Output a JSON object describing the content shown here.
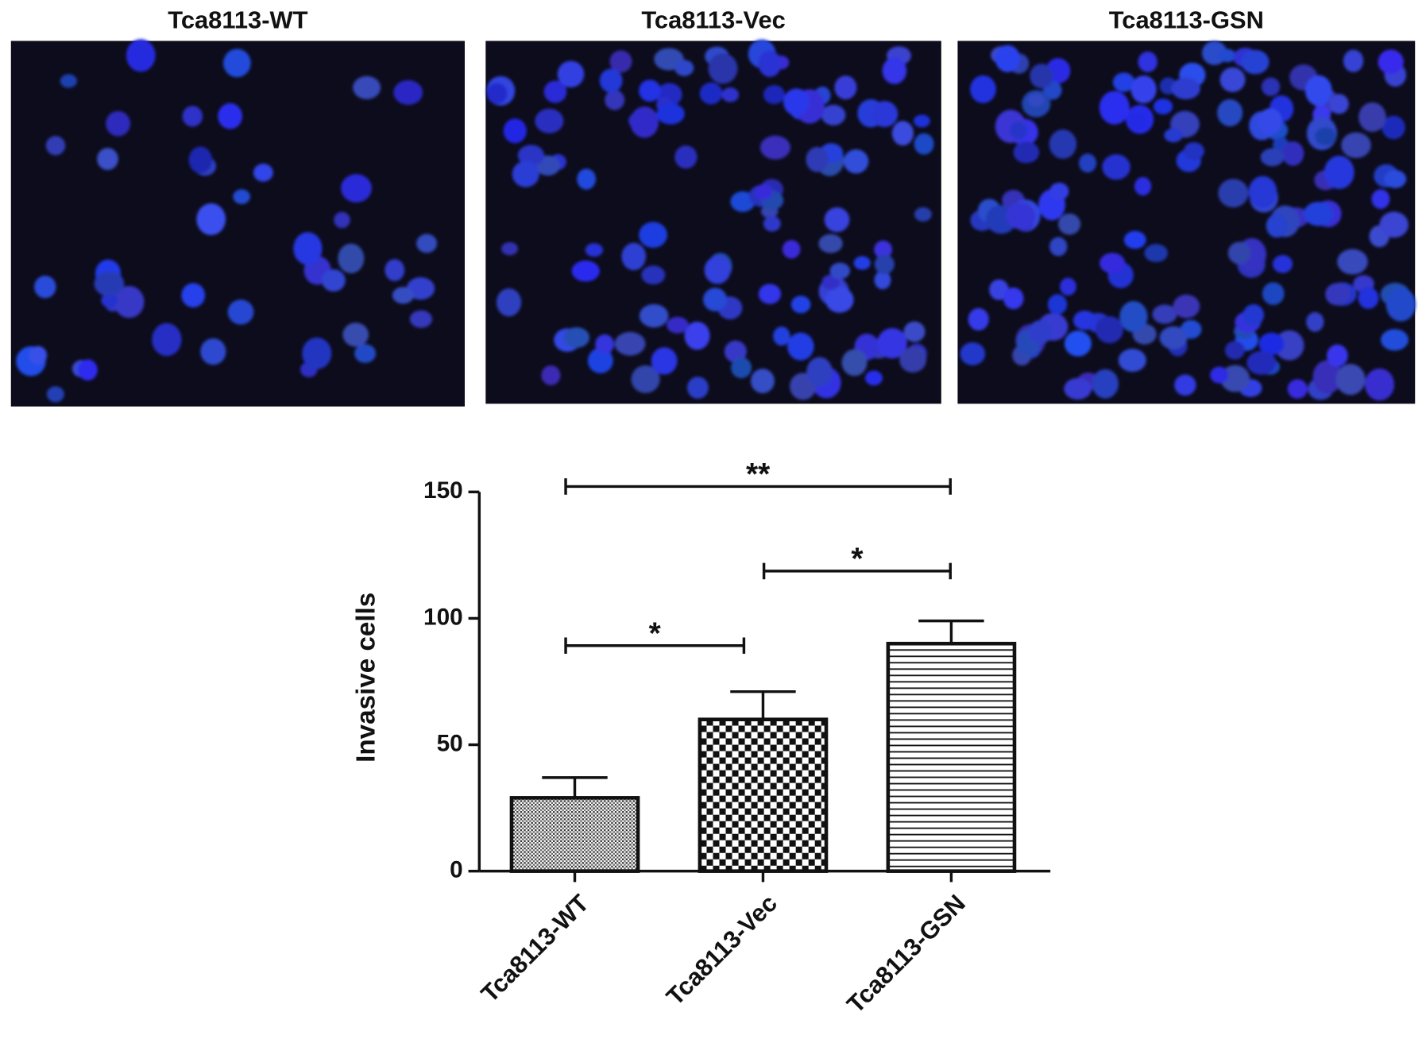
{
  "panels": [
    {
      "title": "Tca8113-WT"
    },
    {
      "title": "Tca8113-Vec"
    },
    {
      "title": "Tca8113-GSN"
    }
  ],
  "chart_data": {
    "type": "bar",
    "ylabel": "Invasive cells",
    "categories": [
      "Tca8113-WT",
      "Tca8113-Vec",
      "Tca8113-GSN"
    ],
    "values": [
      29,
      60,
      90
    ],
    "errors": [
      8,
      11,
      9
    ],
    "patterns": [
      "dots",
      "checker",
      "hlines"
    ],
    "color": "#111111",
    "ylim": [
      0,
      150
    ],
    "yticks": [
      0,
      50,
      100,
      150
    ],
    "annotations": [
      {
        "text": "**"
      },
      {
        "text": "*"
      },
      {
        "text": "*"
      }
    ]
  }
}
